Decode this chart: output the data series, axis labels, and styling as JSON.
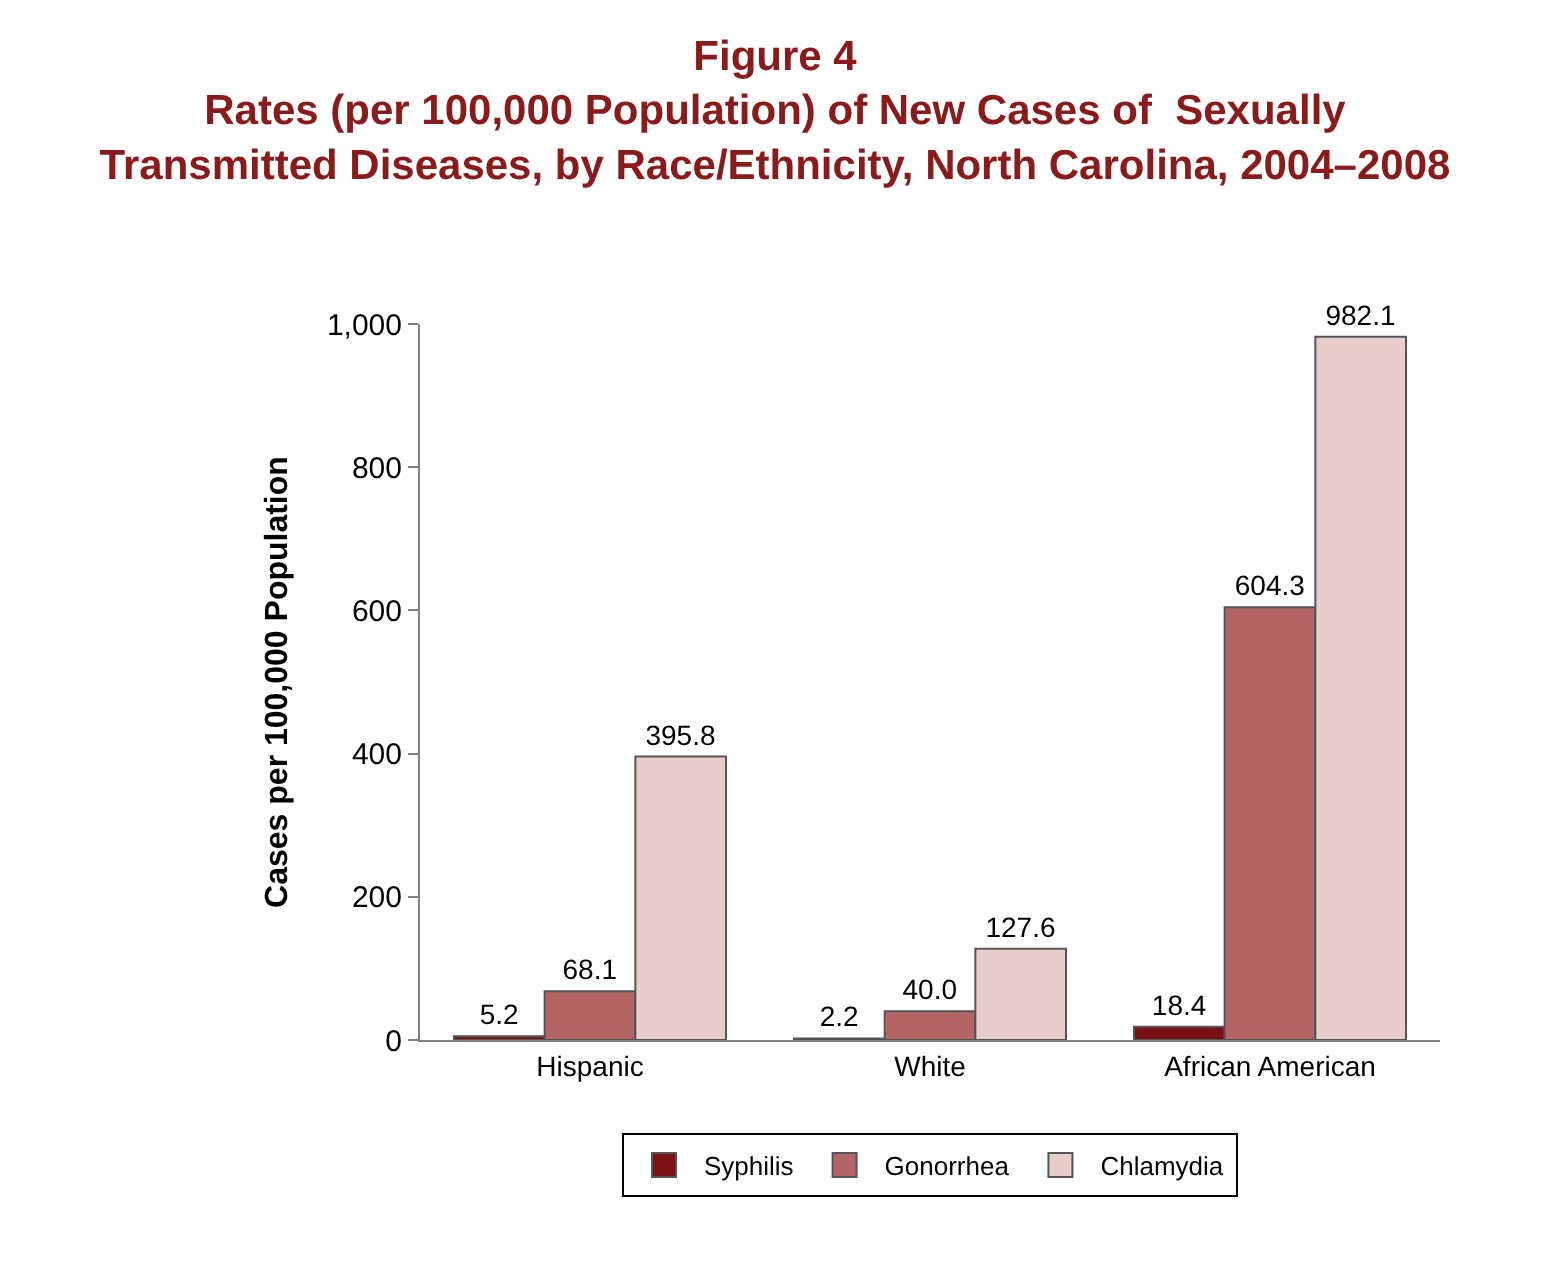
{
  "chart_data": {
    "type": "bar",
    "title": "Figure 4",
    "subtitle": "Rates (per 100,000 Population) of New Cases of  Sexually\nTransmitted Diseases, by Race/Ethnicity, North Carolina, 2004–2008",
    "ylabel": "Cases per 100,000 Population",
    "categories": [
      "Hispanic",
      "White",
      "African American"
    ],
    "series": [
      {
        "name": "Syphilis",
        "color": "#7b1116",
        "values": [
          5.2,
          2.2,
          18.4
        ],
        "value_labels": [
          "5.2",
          "2.2",
          "18.4"
        ]
      },
      {
        "name": "Gonorrhea",
        "color": "#b46465",
        "values": [
          68.1,
          40.0,
          604.3
        ],
        "value_labels": [
          "68.1",
          "40.0",
          "604.3"
        ]
      },
      {
        "name": "Chlamydia",
        "color": "#e8cdcd",
        "values": [
          395.8,
          127.6,
          982.1
        ],
        "value_labels": [
          "395.8",
          "127.6",
          "982.1"
        ]
      }
    ],
    "ylim": [
      0,
      1000
    ],
    "yticks": [
      0,
      200,
      400,
      600,
      800,
      {
        "value": 1000,
        "label": "1,000"
      }
    ],
    "legend": "bottom"
  }
}
